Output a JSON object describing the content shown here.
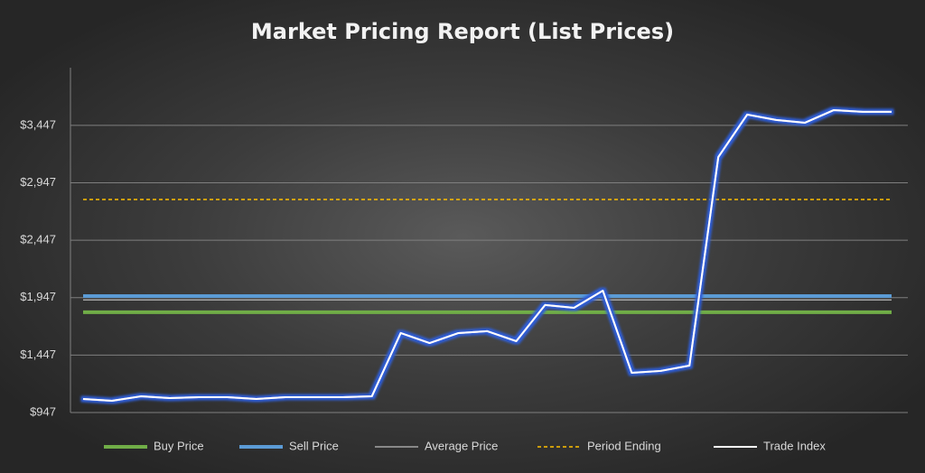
{
  "chart_data": {
    "type": "line",
    "title": "Market Pricing Report (List Prices)",
    "categories": [
      null,
      null,
      null,
      null,
      null,
      null,
      null,
      null,
      null,
      null,
      null,
      null,
      null,
      null,
      null,
      null,
      null,
      null,
      null,
      null,
      null,
      null,
      null,
      null,
      null,
      null,
      null,
      null,
      null
    ],
    "ylim": [
      947,
      3847
    ],
    "yticks": [
      {
        "value": 947,
        "label": "$947"
      },
      {
        "value": 1447,
        "label": "$1,447"
      },
      {
        "value": 1947,
        "label": "$1,947"
      },
      {
        "value": 2447,
        "label": "$2,447"
      },
      {
        "value": 2947,
        "label": "$2,947"
      },
      {
        "value": 3447,
        "label": "$3,447"
      }
    ],
    "grid": true,
    "legend": "bottom",
    "series": [
      {
        "name": "Buy Price",
        "color": "#70ad47",
        "width": 4,
        "values": [
          1820,
          1820,
          1820,
          1820,
          1820,
          1820,
          1820,
          1820,
          1820,
          1820,
          1820,
          1820,
          1820,
          1820,
          1820,
          1820,
          1820,
          1820,
          1820,
          1820,
          1820,
          1820,
          1820,
          1820,
          1820,
          1820,
          1820,
          1820,
          1820
        ]
      },
      {
        "name": "Sell Price",
        "color": "#5b9bd5",
        "width": 4,
        "values": [
          1961,
          1961,
          1961,
          1961,
          1961,
          1961,
          1961,
          1961,
          1961,
          1961,
          1961,
          1961,
          1961,
          1961,
          1961,
          1961,
          1961,
          1961,
          1961,
          1961,
          1961,
          1961,
          1961,
          1961,
          1961,
          1961,
          1961,
          1961,
          1961
        ]
      },
      {
        "name": "Average Price",
        "color": "#a6a6a6",
        "width": 1.5,
        "values": [
          1927,
          1927,
          1927,
          1927,
          1927,
          1927,
          1927,
          1927,
          1927,
          1927,
          1927,
          1927,
          1927,
          1927,
          1927,
          1927,
          1927,
          1927,
          1927,
          1927,
          1927,
          1927,
          1927,
          1927,
          1927,
          1927,
          1927,
          1927,
          1927
        ]
      },
      {
        "name": "Period Ending",
        "color": "#ffc000",
        "width": 1.5,
        "dash": "4 3",
        "values": [
          2802,
          2802,
          2802,
          2802,
          2802,
          2802,
          2802,
          2802,
          2802,
          2802,
          2802,
          2802,
          2802,
          2802,
          2802,
          2802,
          2802,
          2802,
          2802,
          2802,
          2802,
          2802,
          2802,
          2802,
          2802,
          2802,
          2802,
          2802,
          2802
        ]
      },
      {
        "name": "Trade Index",
        "color": "#ffffff",
        "width": 2,
        "glow": "#2f5dd6",
        "values": [
          1065,
          1049,
          1088,
          1073,
          1081,
          1081,
          1065,
          1081,
          1081,
          1081,
          1088,
          1639,
          1552,
          1639,
          1655,
          1568,
          1883,
          1859,
          2008,
          1293,
          1309,
          1356,
          3172,
          3541,
          3494,
          3470,
          3580,
          3565,
          3565
        ]
      }
    ]
  }
}
